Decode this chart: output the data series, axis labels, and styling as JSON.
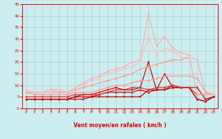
{
  "xlabel": "Vent moyen/en rafales ( km/h )",
  "bg_color": "#cceef0",
  "grid_color": "#aacccc",
  "text_color": "#dd0000",
  "xlim": [
    -0.5,
    23.5
  ],
  "ylim": [
    0,
    45
  ],
  "yticks": [
    0,
    5,
    10,
    15,
    20,
    25,
    30,
    35,
    40,
    45
  ],
  "xticks": [
    0,
    1,
    2,
    3,
    4,
    5,
    6,
    7,
    8,
    9,
    10,
    11,
    12,
    13,
    14,
    15,
    16,
    17,
    18,
    19,
    20,
    21,
    22,
    23
  ],
  "series": [
    {
      "y": [
        4,
        4,
        4,
        4,
        4,
        4,
        4,
        4,
        5,
        5,
        5,
        5,
        5,
        5,
        5,
        8,
        8,
        8,
        10,
        9,
        9,
        9,
        4,
        5
      ],
      "color": "#cc0000",
      "lw": 0.9,
      "marker": "s",
      "ms": 1.5
    },
    {
      "y": [
        4,
        4,
        4,
        4,
        4,
        4,
        5,
        5,
        5,
        6,
        7,
        7,
        7,
        7,
        8,
        7,
        8,
        15,
        9,
        9,
        9,
        4,
        3,
        5
      ],
      "color": "#cc0000",
      "lw": 0.9,
      "marker": "^",
      "ms": 1.5
    },
    {
      "y": [
        4,
        4,
        4,
        4,
        4,
        4,
        5,
        6,
        6,
        7,
        8,
        9,
        8,
        8,
        9,
        20,
        8,
        8,
        9,
        9,
        9,
        4,
        3,
        5
      ],
      "color": "#cc0000",
      "lw": 0.9,
      "marker": "v",
      "ms": 1.5
    },
    {
      "y": [
        5,
        5,
        5,
        5,
        5,
        5,
        6,
        6,
        6,
        6,
        7,
        8,
        8,
        9,
        9,
        8,
        9,
        9,
        10,
        9,
        9,
        6,
        6,
        6
      ],
      "color": "#dd3333",
      "lw": 0.9,
      "marker": "D",
      "ms": 1.5
    },
    {
      "y": [
        7,
        6,
        6,
        6,
        6,
        6,
        7,
        7,
        7,
        8,
        9,
        10,
        10,
        11,
        12,
        12,
        13,
        14,
        14,
        14,
        14,
        13,
        7,
        6
      ],
      "color": "#ff9999",
      "lw": 0.9,
      "marker": "D",
      "ms": 1.5
    },
    {
      "y": [
        7,
        7,
        7,
        7,
        7,
        7,
        8,
        9,
        10,
        11,
        12,
        13,
        14,
        15,
        17,
        18,
        19,
        20,
        21,
        21,
        22,
        21,
        7,
        6
      ],
      "color": "#ff9999",
      "lw": 0.9,
      "marker": "D",
      "ms": 1.5
    },
    {
      "y": [
        7,
        7,
        7,
        8,
        8,
        7,
        9,
        11,
        13,
        14,
        16,
        17,
        18,
        20,
        21,
        41,
        27,
        31,
        26,
        24,
        23,
        6,
        6,
        6
      ],
      "color": "#ffaaaa",
      "lw": 0.9,
      "marker": "D",
      "ms": 1.5
    },
    {
      "y": [
        8,
        7,
        7,
        7,
        8,
        7,
        9,
        10,
        12,
        13,
        15,
        16,
        17,
        18,
        20,
        31,
        23,
        26,
        25,
        22,
        22,
        21,
        6,
        6
      ],
      "color": "#ffbbbb",
      "lw": 0.9,
      "marker": "D",
      "ms": 1.5
    }
  ],
  "wind_arrows": [
    "←",
    "↙",
    "←",
    "←",
    "↙",
    "↖",
    "←",
    "↖",
    "←",
    "←",
    "←",
    "↓",
    "↘",
    "↘",
    "↗",
    "↘",
    "↘",
    "↗",
    "→",
    "→",
    "↗",
    "↗",
    "↗",
    "↗"
  ]
}
